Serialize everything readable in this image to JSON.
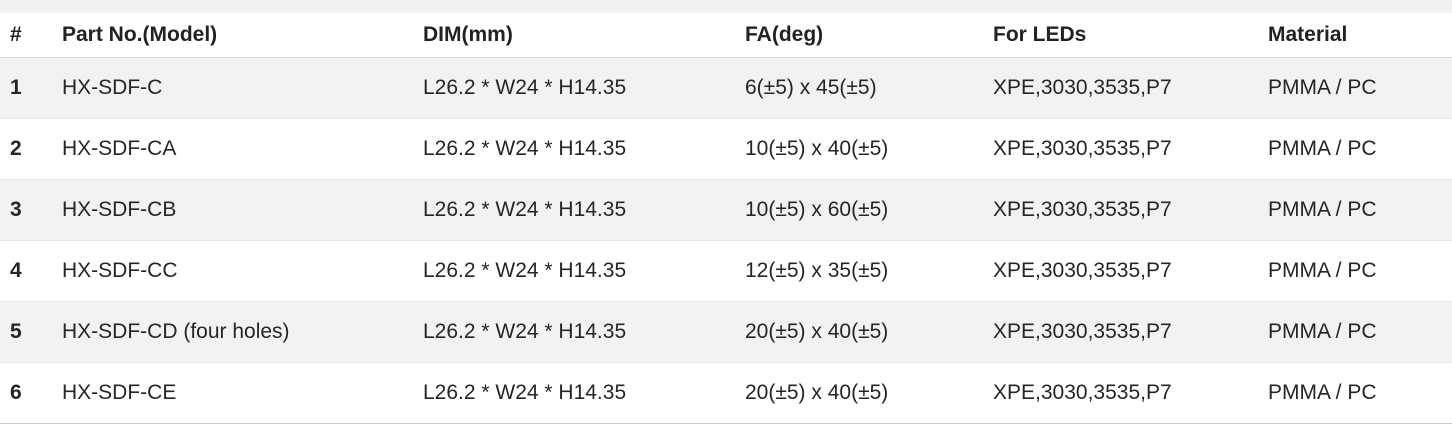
{
  "table": {
    "columns": {
      "index": "#",
      "part_no": "Part No.(Model)",
      "dim": "DIM(mm)",
      "fa": "FA(deg)",
      "for_leds": "For LEDs",
      "material": "Material"
    },
    "rows": [
      [
        "1",
        "HX-SDF-C",
        "L26.2 * W24 * H14.35",
        "6(±5) x 45(±5)",
        "XPE,3030,3535,P7",
        "PMMA / PC"
      ],
      [
        "2",
        "HX-SDF-CA",
        "L26.2 * W24 * H14.35",
        "10(±5) x 40(±5)",
        "XPE,3030,3535,P7",
        "PMMA / PC"
      ],
      [
        "3",
        "HX-SDF-CB",
        "L26.2 * W24 * H14.35",
        "10(±5) x 60(±5)",
        "XPE,3030,3535,P7",
        "PMMA / PC"
      ],
      [
        "4",
        "HX-SDF-CC",
        "L26.2 * W24 * H14.35",
        "12(±5) x 35(±5)",
        "XPE,3030,3535,P7",
        "PMMA / PC"
      ],
      [
        "5",
        "HX-SDF-CD (four holes)",
        "L26.2 * W24 * H14.35",
        "20(±5) x 40(±5)",
        "XPE,3030,3535,P7",
        "PMMA / PC"
      ],
      [
        "6",
        "HX-SDF-CE",
        "L26.2 * W24 * H14.35",
        "20(±5) x 40(±5)",
        "XPE,3030,3535,P7",
        "PMMA / PC"
      ]
    ],
    "colors": {
      "zebra_row_bg": "#f2f2f2",
      "top_band_bg": "#f1f1f1",
      "header_separator": "#dcdcdc",
      "row_separator": "#e5e5e5",
      "bottom_rule": "#cfcfcf",
      "text": "#252525"
    }
  }
}
